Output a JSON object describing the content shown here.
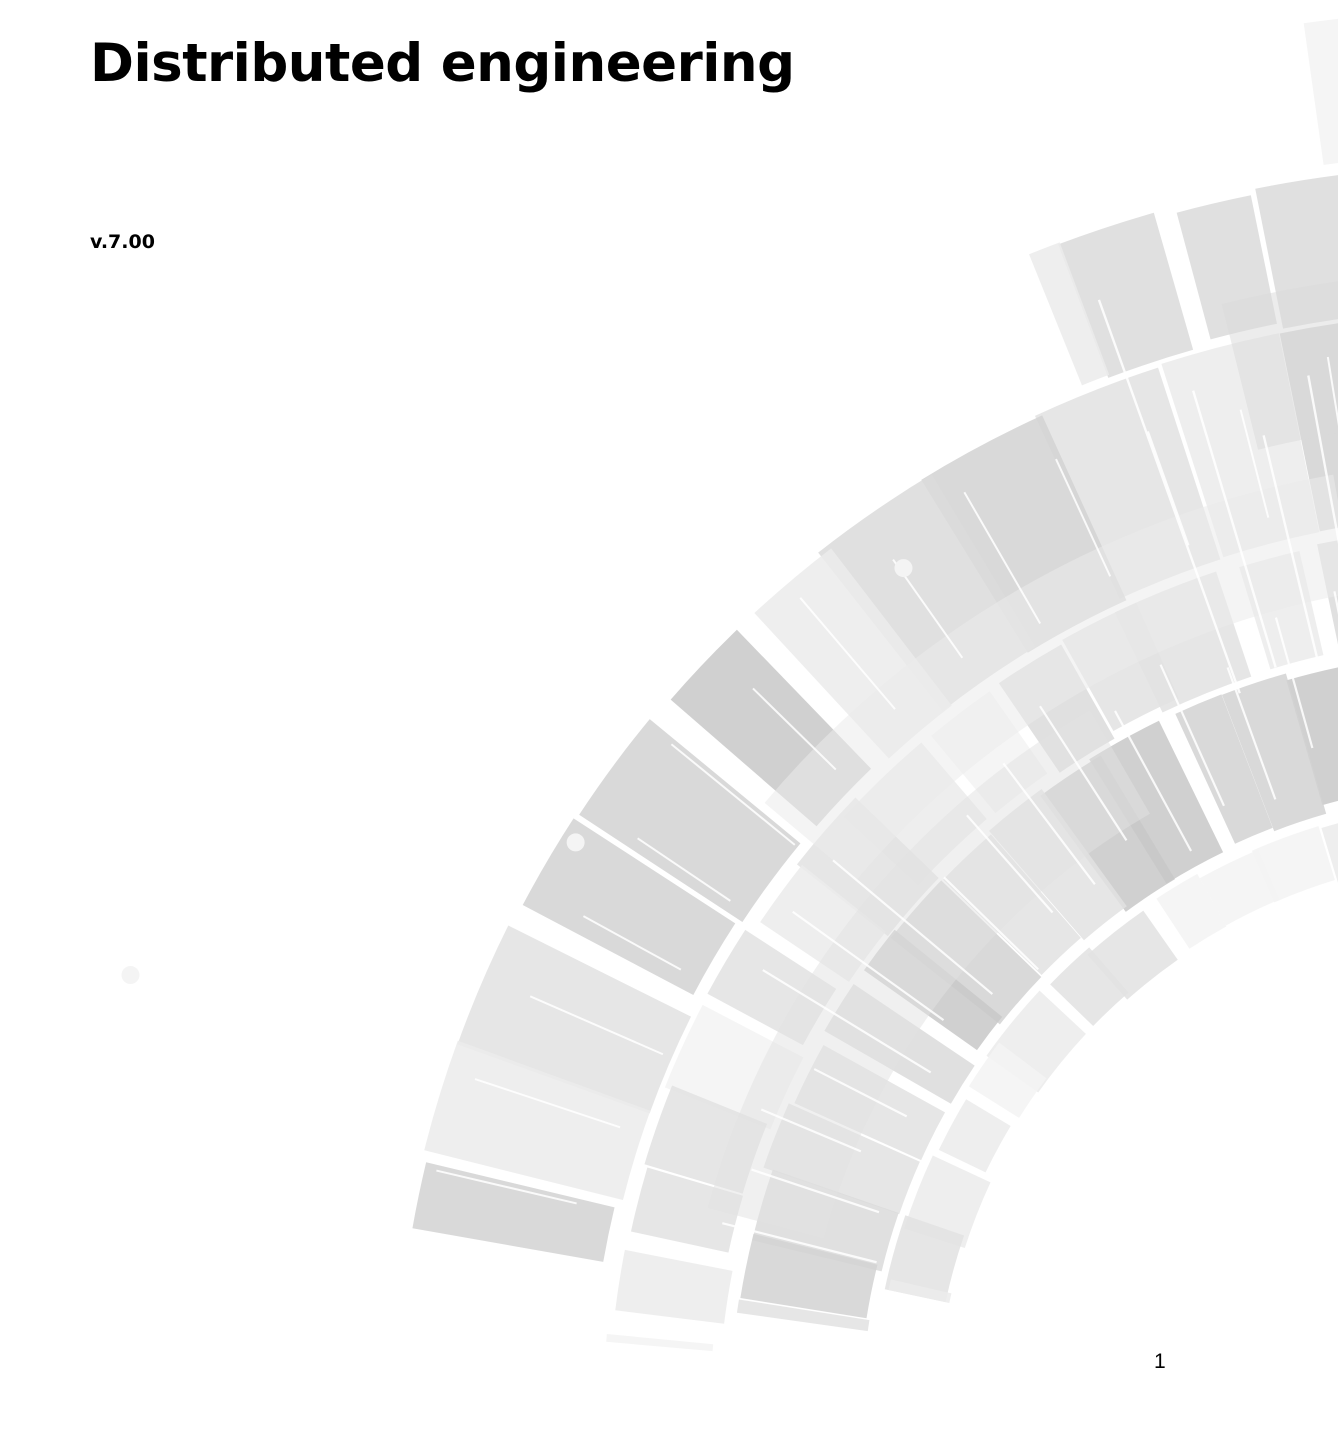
{
  "document": {
    "title": "Distributed engineering",
    "version": "v.7.00",
    "page_number": "1"
  },
  "cover_art": {
    "icon": "concentric-arc-segments-graphic",
    "palette": [
      "#c8c8c8",
      "#d2d2d2",
      "#dadada",
      "#e2e2e2",
      "#ebebeb",
      "#f3f3f3"
    ]
  }
}
